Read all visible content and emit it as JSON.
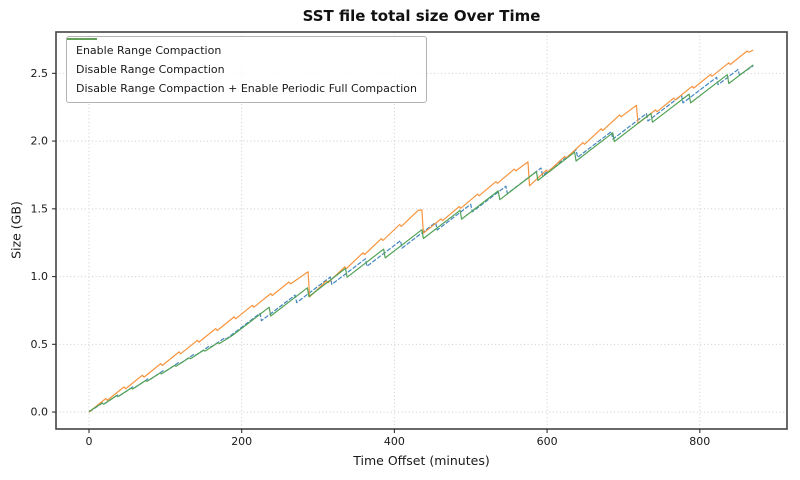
{
  "figure": {
    "title": "SST file total size Over Time",
    "xlabel": "Time Offset (minutes)",
    "ylabel": "Size (GB)"
  },
  "style": {
    "grid_color": "#cbcbcb",
    "spine_color": "#444444",
    "tick_color": "#333333",
    "text_color": "#1a1a1a",
    "legend_border": "#b3b3b3"
  },
  "chart_data": {
    "type": "line",
    "title": "SST file total size Over Time",
    "xlabel": "Time Offset (minutes)",
    "ylabel": "Size (GB)",
    "xlim": [
      -43.2,
      914.2
    ],
    "ylim": [
      -0.125,
      2.805
    ],
    "xticks": [
      0,
      200,
      400,
      600,
      800
    ],
    "yticks": [
      0.0,
      0.5,
      1.0,
      1.5,
      2.0,
      2.5
    ],
    "grid": true,
    "grid_style": "dotted",
    "legend_position": "upper-left",
    "series": [
      {
        "name": "Enable Range Compaction",
        "color": "#4286bf",
        "dash": "4.5 1.6",
        "legend_dash": "4 2.4",
        "points": [
          [
            0,
            0
          ],
          [
            18,
            0.068
          ],
          [
            20,
            0.06
          ],
          [
            38,
            0.128
          ],
          [
            40,
            0.12
          ],
          [
            58,
            0.188
          ],
          [
            60,
            0.18
          ],
          [
            78,
            0.248
          ],
          [
            80,
            0.24
          ],
          [
            98,
            0.308
          ],
          [
            100,
            0.3
          ],
          [
            118,
            0.368
          ],
          [
            120,
            0.36
          ],
          [
            138,
            0.428
          ],
          [
            140,
            0.42
          ],
          [
            158,
            0.488
          ],
          [
            160,
            0.48
          ],
          [
            178,
            0.548
          ],
          [
            180,
            0.54
          ],
          [
            224,
            0.729
          ],
          [
            226,
            0.674
          ],
          [
            270,
            0.863
          ],
          [
            272,
            0.808
          ],
          [
            316,
            0.997
          ],
          [
            318,
            0.942
          ],
          [
            362,
            1.131
          ],
          [
            364,
            1.076
          ],
          [
            408,
            1.265
          ],
          [
            410,
            1.21
          ],
          [
            454,
            1.399
          ],
          [
            456,
            1.344
          ],
          [
            500,
            1.533
          ],
          [
            502,
            1.478
          ],
          [
            546,
            1.667
          ],
          [
            548,
            1.612
          ],
          [
            592,
            1.801
          ],
          [
            594,
            1.746
          ],
          [
            638,
            1.935
          ],
          [
            640,
            1.88
          ],
          [
            684,
            2.069
          ],
          [
            686,
            2.014
          ],
          [
            730,
            2.203
          ],
          [
            732,
            2.148
          ],
          [
            776,
            2.337
          ],
          [
            778,
            2.282
          ],
          [
            822,
            2.471
          ],
          [
            824,
            2.416
          ],
          [
            850,
            2.528
          ],
          [
            852,
            2.487
          ],
          [
            870,
            2.556
          ]
        ]
      },
      {
        "name": "Disable Range Compaction",
        "color": "#f7953f",
        "dash": null,
        "legend_dash": null,
        "points": [
          [
            0,
            0
          ],
          [
            22,
            0.1
          ],
          [
            24,
            0.086
          ],
          [
            46,
            0.186
          ],
          [
            48,
            0.172
          ],
          [
            70,
            0.272
          ],
          [
            72,
            0.258
          ],
          [
            94,
            0.358
          ],
          [
            96,
            0.344
          ],
          [
            118,
            0.444
          ],
          [
            120,
            0.43
          ],
          [
            142,
            0.53
          ],
          [
            144,
            0.516
          ],
          [
            166,
            0.616
          ],
          [
            168,
            0.602
          ],
          [
            190,
            0.702
          ],
          [
            192,
            0.688
          ],
          [
            214,
            0.788
          ],
          [
            216,
            0.774
          ],
          [
            238,
            0.874
          ],
          [
            240,
            0.86
          ],
          [
            262,
            0.96
          ],
          [
            264,
            0.946
          ],
          [
            287,
            1.035
          ],
          [
            289,
            0.85
          ],
          [
            311,
            0.968
          ],
          [
            313,
            0.954
          ],
          [
            335,
            1.072
          ],
          [
            337,
            1.058
          ],
          [
            359,
            1.176
          ],
          [
            361,
            1.162
          ],
          [
            383,
            1.28
          ],
          [
            385,
            1.266
          ],
          [
            407,
            1.384
          ],
          [
            409,
            1.37
          ],
          [
            431,
            1.488
          ],
          [
            436,
            1.492
          ],
          [
            438,
            1.32
          ],
          [
            461,
            1.425
          ],
          [
            463,
            1.412
          ],
          [
            485,
            1.517
          ],
          [
            487,
            1.504
          ],
          [
            509,
            1.609
          ],
          [
            511,
            1.596
          ],
          [
            533,
            1.701
          ],
          [
            535,
            1.688
          ],
          [
            557,
            1.793
          ],
          [
            559,
            1.78
          ],
          [
            575,
            1.846
          ],
          [
            577,
            1.67
          ],
          [
            599,
            1.785
          ],
          [
            601,
            1.772
          ],
          [
            623,
            1.887
          ],
          [
            625,
            1.874
          ],
          [
            647,
            1.989
          ],
          [
            649,
            1.976
          ],
          [
            671,
            2.091
          ],
          [
            673,
            2.078
          ],
          [
            695,
            2.193
          ],
          [
            697,
            2.18
          ],
          [
            717,
            2.264
          ],
          [
            719,
            2.13
          ],
          [
            742,
            2.23
          ],
          [
            744,
            2.217
          ],
          [
            766,
            2.317
          ],
          [
            768,
            2.304
          ],
          [
            790,
            2.404
          ],
          [
            792,
            2.391
          ],
          [
            814,
            2.491
          ],
          [
            816,
            2.478
          ],
          [
            838,
            2.578
          ],
          [
            840,
            2.565
          ],
          [
            862,
            2.665
          ],
          [
            864,
            2.655
          ],
          [
            870,
            2.672
          ]
        ]
      },
      {
        "name": "Disable Range Compaction + Enable Periodic Full Compaction",
        "color": "#52a257",
        "dash": null,
        "legend_dash": null,
        "points": [
          [
            0,
            0.004
          ],
          [
            17,
            0.066
          ],
          [
            19,
            0.058
          ],
          [
            36,
            0.12
          ],
          [
            38,
            0.114
          ],
          [
            55,
            0.176
          ],
          [
            57,
            0.17
          ],
          [
            74,
            0.232
          ],
          [
            76,
            0.226
          ],
          [
            93,
            0.288
          ],
          [
            95,
            0.282
          ],
          [
            112,
            0.344
          ],
          [
            114,
            0.338
          ],
          [
            131,
            0.4
          ],
          [
            133,
            0.394
          ],
          [
            150,
            0.456
          ],
          [
            152,
            0.45
          ],
          [
            169,
            0.512
          ],
          [
            171,
            0.506
          ],
          [
            188,
            0.566
          ],
          [
            236,
            0.774
          ],
          [
            238,
            0.709
          ],
          [
            286,
            0.917
          ],
          [
            288,
            0.852
          ],
          [
            336,
            1.06
          ],
          [
            338,
            0.995
          ],
          [
            386,
            1.203
          ],
          [
            388,
            1.138
          ],
          [
            436,
            1.346
          ],
          [
            438,
            1.281
          ],
          [
            486,
            1.489
          ],
          [
            488,
            1.424
          ],
          [
            536,
            1.632
          ],
          [
            538,
            1.567
          ],
          [
            586,
            1.775
          ],
          [
            588,
            1.71
          ],
          [
            636,
            1.918
          ],
          [
            638,
            1.853
          ],
          [
            686,
            2.061
          ],
          [
            688,
            1.996
          ],
          [
            736,
            2.204
          ],
          [
            738,
            2.139
          ],
          [
            786,
            2.347
          ],
          [
            788,
            2.282
          ],
          [
            836,
            2.49
          ],
          [
            838,
            2.425
          ],
          [
            870,
            2.563
          ]
        ]
      }
    ]
  }
}
